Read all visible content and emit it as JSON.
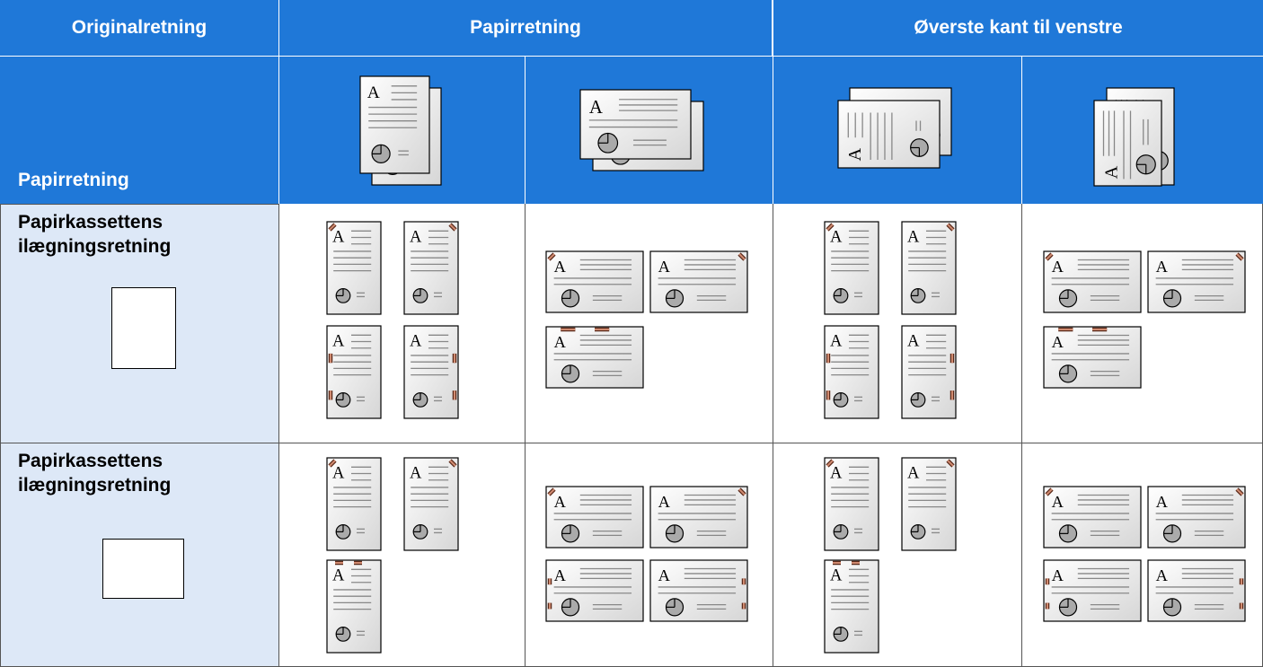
{
  "header": {
    "columns": [
      "Originalretning",
      "Papirretning",
      "Øverste kant til venstre"
    ],
    "row_title": "Papirretning"
  },
  "rows": [
    {
      "label": "Papirkassettens ilægningsretning"
    },
    {
      "label": "Papirkassettens ilægningsretning"
    }
  ]
}
